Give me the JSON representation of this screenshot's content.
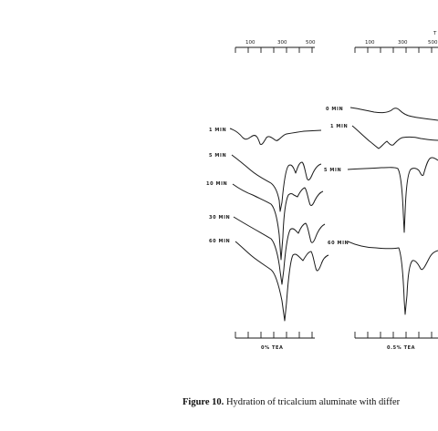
{
  "figure": {
    "caption_label": "Figure 10.",
    "caption_text": " Hydration of tricalcium aluminate with differ",
    "panel_left": {
      "top_axis_ticks": [
        "100",
        "300",
        "500"
      ],
      "bottom_label": "0% TEA",
      "curve_labels": [
        "1 MIN",
        "5 MIN",
        "10 MIN",
        "30 MIN",
        "60 MIN"
      ]
    },
    "panel_right": {
      "top_axis_ticks": [
        "100",
        "300",
        "500"
      ],
      "top_axis_unit_fragment": "T",
      "bottom_label": "0.5% TEA",
      "curve_labels": [
        "0 MIN",
        "1 MIN",
        "5 MIN",
        "60 MIN"
      ]
    }
  }
}
